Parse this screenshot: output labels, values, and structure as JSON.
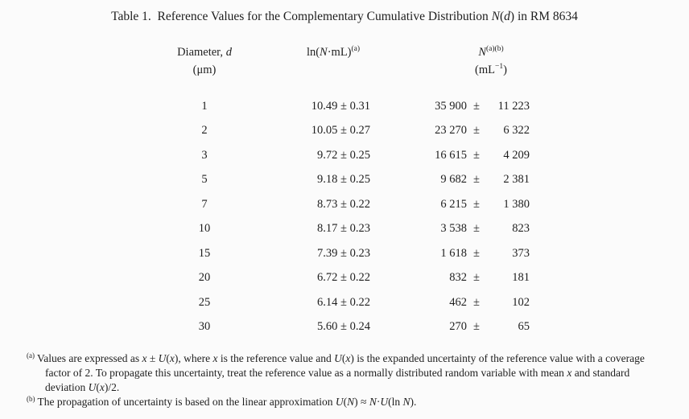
{
  "page": {
    "background_color": "#fbfbfb",
    "text_color": "#1e1e1e"
  },
  "title": "Table 1.  Reference Values for the Complementary Cumulative Distribution *N*(*d*) in RM 8634",
  "table": {
    "headers": {
      "diameter_line1": "Diameter, *d*",
      "diameter_line2": "(μm)",
      "ln_header": "ln(*N*·mL)^(a)^",
      "n_line1": "*N*^(a)(b)^",
      "n_line2": "(mL^−1^)"
    },
    "pm_symbol": "±",
    "rows": [
      {
        "diameter": "1",
        "ln_value": "10.49 ± 0.31",
        "n_value": "35 900",
        "n_uncertainty": "11 223"
      },
      {
        "diameter": "2",
        "ln_value": "10.05 ± 0.27",
        "n_value": "23 270",
        "n_uncertainty": "6 322"
      },
      {
        "diameter": "3",
        "ln_value": "9.72 ± 0.25",
        "n_value": "16 615",
        "n_uncertainty": "4 209"
      },
      {
        "diameter": "5",
        "ln_value": "9.18 ± 0.25",
        "n_value": "9 682",
        "n_uncertainty": "2 381"
      },
      {
        "diameter": "7",
        "ln_value": "8.73 ± 0.22",
        "n_value": "6 215",
        "n_uncertainty": "1 380"
      },
      {
        "diameter": "10",
        "ln_value": "8.17 ± 0.23",
        "n_value": "3 538",
        "n_uncertainty": "823"
      },
      {
        "diameter": "15",
        "ln_value": "7.39 ± 0.23",
        "n_value": "1 618",
        "n_uncertainty": "373"
      },
      {
        "diameter": "20",
        "ln_value": "6.72 ± 0.22",
        "n_value": "832",
        "n_uncertainty": "181"
      },
      {
        "diameter": "25",
        "ln_value": "6.14 ± 0.22",
        "n_value": "462",
        "n_uncertainty": "102"
      },
      {
        "diameter": "30",
        "ln_value": "5.60 ± 0.24",
        "n_value": "270",
        "n_uncertainty": "65"
      }
    ]
  },
  "footnotes": [
    {
      "marker": "(a)",
      "text": "Values are expressed as *x* ± *U*(*x*), where *x* is the reference value and *U*(*x*) is the expanded uncertainty of the reference value with a coverage factor of 2. To propagate this uncertainty, treat the reference value as a normally distributed random variable with mean *x* and standard deviation *U*(*x*)/2."
    },
    {
      "marker": "(b)",
      "text": "The propagation of uncertainty is based on the linear approximation *U*(*N*) ≈ *N*·*U*(ln *N*)."
    }
  ]
}
